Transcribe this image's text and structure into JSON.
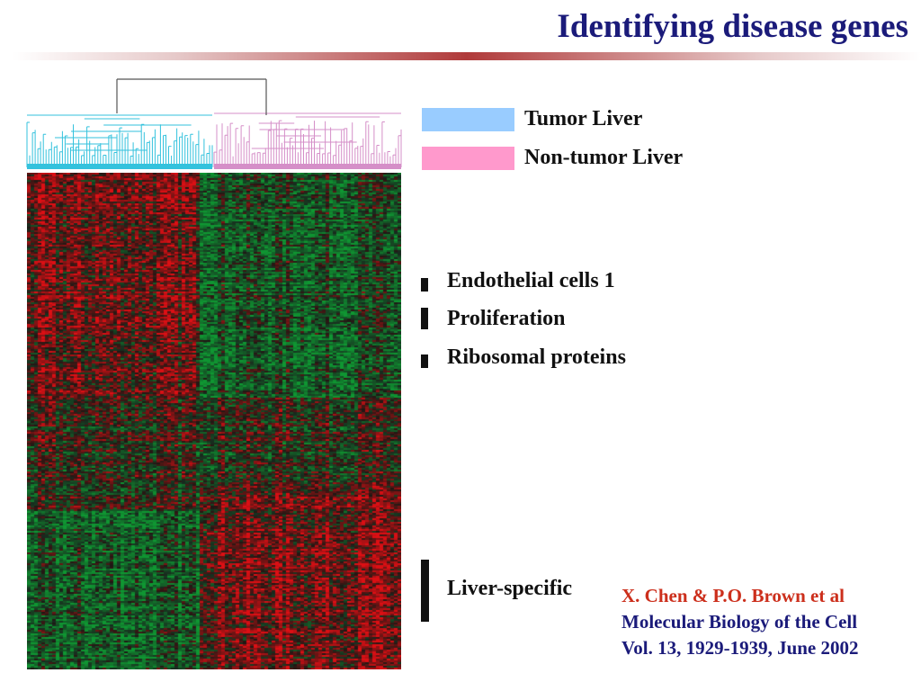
{
  "slide": {
    "title": "Identifying disease genes"
  },
  "legend": [
    {
      "label": "Tumor Liver",
      "color": "#99ccff"
    },
    {
      "label": "Non-tumor Liver",
      "color": "#ff99cc"
    }
  ],
  "clusters": [
    {
      "label": "Endothelial cells 1"
    },
    {
      "label": "Proliferation"
    },
    {
      "label": "Ribosomal proteins"
    },
    {
      "label": "Liver-specific"
    }
  ],
  "citation": {
    "authors": "X. Chen & P.O. Brown et al",
    "journal": "Molecular Biology of the Cell",
    "volume": "Vol. 13, 1929-1939, June 2002"
  },
  "colors": {
    "title": "#1b1b7a",
    "accent_rule": "#b03a3a",
    "citation_authors": "#cc2f1c",
    "citation_text": "#1b1b7a",
    "tumor_dendrogram": "#33c2dd",
    "nontumor_dendrogram": "#d58fc8",
    "heatmap_up": "#d42020",
    "heatmap_down": "#1f8a2e"
  }
}
